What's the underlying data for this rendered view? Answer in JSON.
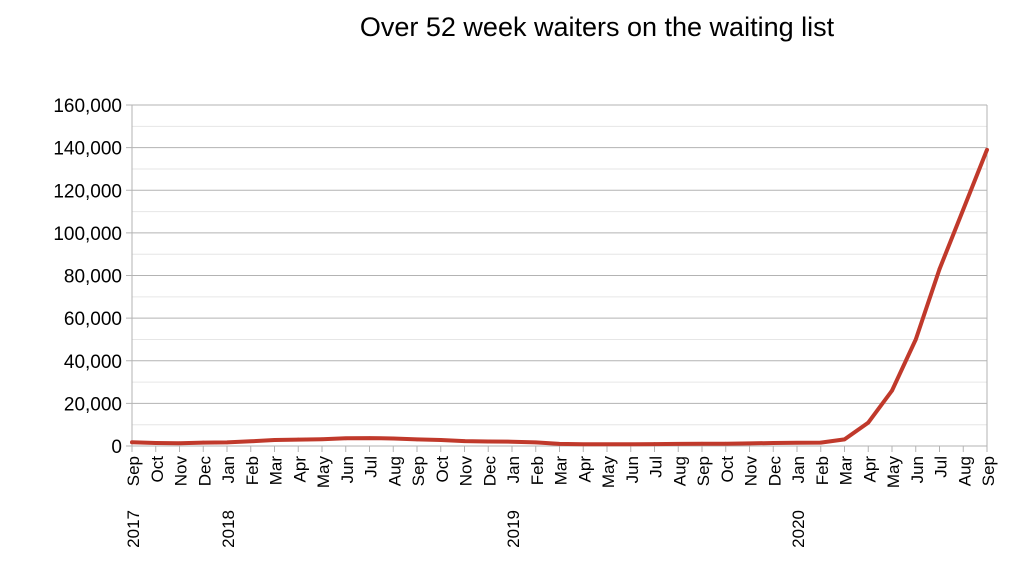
{
  "chart_data": {
    "type": "line",
    "title": "Over 52 week waiters on the waiting list",
    "xlabel": "",
    "ylabel": "",
    "ylim": [
      0,
      160000
    ],
    "yticks": [
      0,
      20000,
      40000,
      60000,
      80000,
      100000,
      120000,
      140000,
      160000
    ],
    "ytick_labels": [
      "0",
      "20,000",
      "40,000",
      "60,000",
      "80,000",
      "100,000",
      "120,000",
      "140,000",
      "160,000"
    ],
    "grid": true,
    "legend": "none",
    "line_color": "#c0392b",
    "x": [
      "Sep 2017",
      "Oct",
      "Nov",
      "Dec",
      "Jan 2018",
      "Feb",
      "Mar",
      "Apr",
      "May",
      "Jun",
      "Jul",
      "Aug",
      "Sep",
      "Oct",
      "Nov",
      "Dec",
      "Jan 2019",
      "Feb",
      "Mar",
      "Apr",
      "May",
      "Jun",
      "Jul",
      "Aug",
      "Sep",
      "Oct",
      "Nov",
      "Dec",
      "Jan 2020",
      "Feb",
      "Mar",
      "Apr",
      "May",
      "Jun",
      "Jul",
      "Aug",
      "Sep"
    ],
    "x_month_labels": [
      "Sep",
      "Oct",
      "Nov",
      "Dec",
      "Jan",
      "Feb",
      "Mar",
      "Apr",
      "May",
      "Jun",
      "Jul",
      "Aug",
      "Sep",
      "Oct",
      "Nov",
      "Dec",
      "Jan",
      "Feb",
      "Mar",
      "Apr",
      "May",
      "Jun",
      "Jul",
      "Aug",
      "Sep",
      "Oct",
      "Nov",
      "Dec",
      "Jan",
      "Feb",
      "Mar",
      "Apr",
      "May",
      "Jun",
      "Jul",
      "Aug",
      "Sep"
    ],
    "x_year_labels": [
      {
        "index": 0,
        "label": "2017"
      },
      {
        "index": 4,
        "label": "2018"
      },
      {
        "index": 16,
        "label": "2019"
      },
      {
        "index": 28,
        "label": "2020"
      }
    ],
    "series": [
      {
        "values": [
          1750,
          1400,
          1300,
          1600,
          1700,
          2200,
          2800,
          3000,
          3200,
          3600,
          3700,
          3500,
          3100,
          2800,
          2300,
          2100,
          2000,
          1700,
          1000,
          800,
          800,
          800,
          900,
          1000,
          1100,
          1100,
          1200,
          1400,
          1500,
          1600,
          3100,
          11000,
          26000,
          50000,
          83000,
          111000,
          139000
        ]
      }
    ]
  }
}
